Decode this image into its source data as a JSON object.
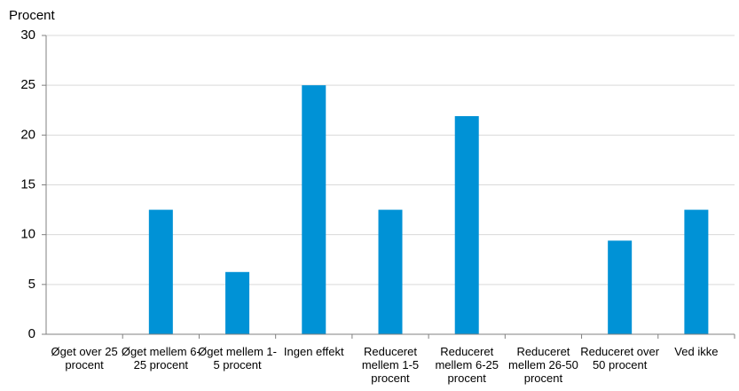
{
  "chart_data": {
    "type": "bar",
    "y_label": "Procent",
    "categories": [
      "Øget over 25 procent",
      "Øget mellem 6-25 procent",
      "Øget mellem 1-5 procent",
      "Ingen effekt",
      "Reduceret mellem 1-5 procent",
      "Reduceret mellem 6-25 procent",
      "Reduceret mellem 26-50 procent",
      "Reduceret over 50 procent",
      "Ved ikke"
    ],
    "values": [
      0,
      12.5,
      6.25,
      25,
      12.5,
      21.9,
      0,
      9.4,
      12.5
    ],
    "color": "#0092d6",
    "ylim": [
      0,
      30
    ],
    "yticks": [
      0,
      5,
      10,
      15,
      20,
      25,
      30
    ],
    "grid": true
  }
}
